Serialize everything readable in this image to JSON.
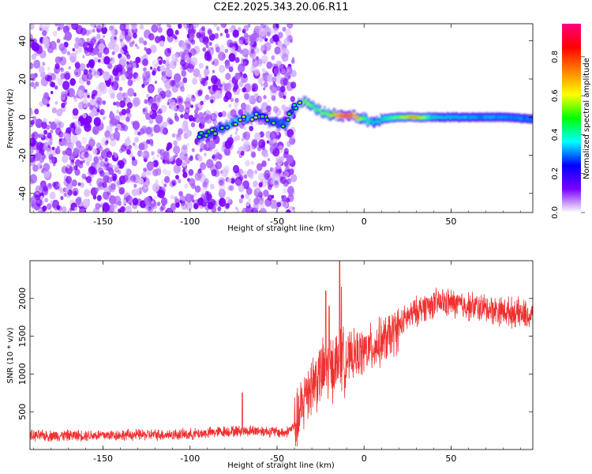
{
  "title": "C2E2.2025.343.20.06.R11",
  "chart_data": [
    {
      "type": "heatmap",
      "xlabel": "Height of straight line (km)",
      "ylabel": "Frequency (Hz)",
      "xlim": [
        -192,
        97
      ],
      "ylim": [
        -50,
        49
      ],
      "xticks": [
        -150,
        -100,
        -50,
        0,
        50
      ],
      "yticks": [
        -40,
        -20,
        0,
        20,
        40
      ],
      "x_tick_labels": [
        "-150",
        "-100",
        "-50",
        "0",
        "50"
      ],
      "y_tick_labels": [
        "-40",
        "-20",
        "0",
        "20",
        "40"
      ],
      "colorbar": {
        "label": "Normalized spectral amplitude",
        "range": [
          0,
          0.97
        ],
        "ticks": [
          0.0,
          0.2,
          0.4,
          0.6,
          0.8
        ],
        "tick_labels": [
          "0.0",
          "0.2",
          "0.4",
          "0.6",
          "0.8"
        ],
        "colors": [
          "#ffffff",
          "#7a00ff",
          "#0000ff",
          "#00ffff",
          "#00ff00",
          "#ffff00",
          "#ff8000",
          "#ff0000",
          "#ff007f"
        ]
      },
      "noise_region_x": [
        -192,
        -43
      ],
      "signal_track": [
        {
          "x": -95,
          "y": -10,
          "a": 0.22
        },
        {
          "x": -90,
          "y": -9,
          "a": 0.28
        },
        {
          "x": -85,
          "y": -7,
          "a": 0.3
        },
        {
          "x": -80,
          "y": -5,
          "a": 0.35
        },
        {
          "x": -75,
          "y": -3,
          "a": 0.45
        },
        {
          "x": -70,
          "y": -1,
          "a": 0.5
        },
        {
          "x": -65,
          "y": 0,
          "a": 0.4
        },
        {
          "x": -60,
          "y": 1,
          "a": 0.25
        },
        {
          "x": -55,
          "y": -2,
          "a": 0.2
        },
        {
          "x": -50,
          "y": -3,
          "a": 0.25
        },
        {
          "x": -45,
          "y": -4,
          "a": 0.35
        },
        {
          "x": -42,
          "y": 3,
          "a": 0.45
        },
        {
          "x": -38,
          "y": 7,
          "a": 0.55
        },
        {
          "x": -34,
          "y": 8,
          "a": 0.6
        },
        {
          "x": -30,
          "y": 6,
          "a": 0.5
        },
        {
          "x": -26,
          "y": 3,
          "a": 0.55
        },
        {
          "x": -22,
          "y": 2,
          "a": 0.55
        },
        {
          "x": -18,
          "y": 1,
          "a": 0.7
        },
        {
          "x": -14,
          "y": 0.5,
          "a": 0.9
        },
        {
          "x": -10,
          "y": 0.5,
          "a": 0.97
        },
        {
          "x": -6,
          "y": 0.5,
          "a": 0.85
        },
        {
          "x": -2,
          "y": 0,
          "a": 0.6
        },
        {
          "x": 2,
          "y": -2,
          "a": 0.45
        },
        {
          "x": 6,
          "y": -3,
          "a": 0.4
        },
        {
          "x": 10,
          "y": -1,
          "a": 0.45
        },
        {
          "x": 20,
          "y": 0,
          "a": 0.55
        },
        {
          "x": 28,
          "y": 0,
          "a": 0.75
        },
        {
          "x": 40,
          "y": 0,
          "a": 0.4
        },
        {
          "x": 60,
          "y": 0,
          "a": 0.35
        },
        {
          "x": 80,
          "y": 0,
          "a": 0.32
        },
        {
          "x": 97,
          "y": -1,
          "a": 0.3
        }
      ]
    },
    {
      "type": "line",
      "xlabel": "Height of straight line (km)",
      "ylabel": "SNR (10 * v/v)",
      "xlim": [
        -192,
        97
      ],
      "ylim": [
        0,
        2500
      ],
      "xticks": [
        -150,
        -100,
        -50,
        0,
        50
      ],
      "yticks": [
        500,
        1000,
        1500,
        2000
      ],
      "x_tick_labels": [
        "-150",
        "-100",
        "-50",
        "0",
        "50"
      ],
      "y_tick_labels": [
        "500",
        "1000",
        "1500",
        "2000"
      ],
      "color": "#f03030",
      "trend": [
        {
          "x": -192,
          "y": 180
        },
        {
          "x": -150,
          "y": 190
        },
        {
          "x": -100,
          "y": 200
        },
        {
          "x": -80,
          "y": 240
        },
        {
          "x": -60,
          "y": 250
        },
        {
          "x": -45,
          "y": 220
        },
        {
          "x": -38,
          "y": 350
        },
        {
          "x": -33,
          "y": 800
        },
        {
          "x": -25,
          "y": 1000
        },
        {
          "x": -15,
          "y": 1150
        },
        {
          "x": -5,
          "y": 1250
        },
        {
          "x": 5,
          "y": 1350
        },
        {
          "x": 15,
          "y": 1500
        },
        {
          "x": 25,
          "y": 1750
        },
        {
          "x": 35,
          "y": 1900
        },
        {
          "x": 45,
          "y": 1950
        },
        {
          "x": 60,
          "y": 1900
        },
        {
          "x": 75,
          "y": 1850
        },
        {
          "x": 90,
          "y": 1800
        },
        {
          "x": 97,
          "y": 1750
        }
      ],
      "peaks": [
        {
          "x": -70,
          "y": 750
        },
        {
          "x": -22,
          "y": 2100
        },
        {
          "x": -20,
          "y": 1900
        },
        {
          "x": -14,
          "y": 2500
        },
        {
          "x": -13,
          "y": 2150
        }
      ]
    }
  ]
}
